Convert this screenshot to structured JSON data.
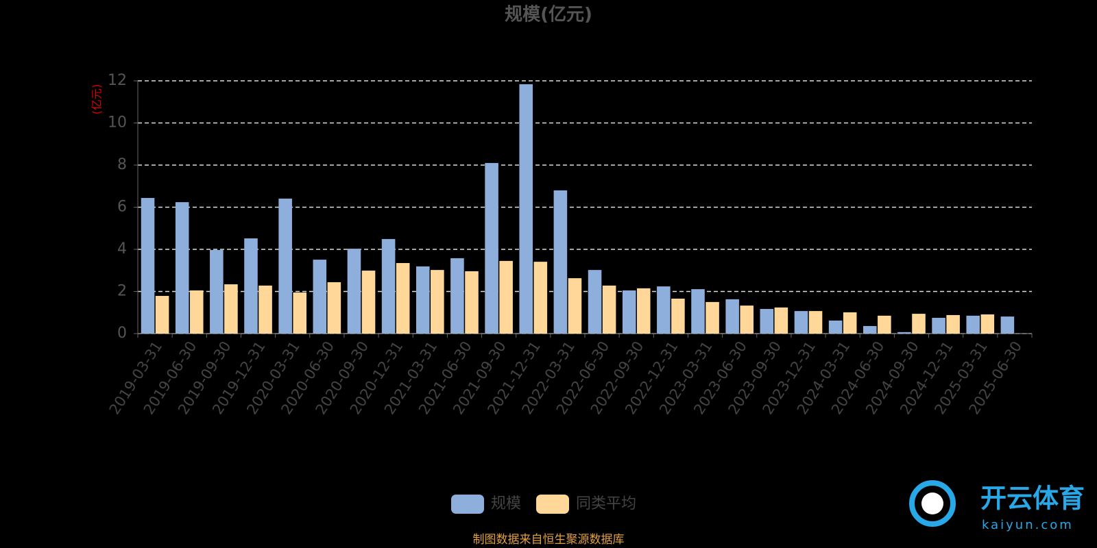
{
  "chart_data": {
    "type": "bar",
    "title": "规模(亿元)",
    "y_label": "(亿元)",
    "categories": [
      "2019-03-31",
      "2019-06-30",
      "2019-09-30",
      "2019-12-31",
      "2020-03-31",
      "2020-06-30",
      "2020-09-30",
      "2020-12-31",
      "2021-03-31",
      "2021-06-30",
      "2021-09-30",
      "2021-12-31",
      "2022-03-31",
      "2022-06-30",
      "2022-09-30",
      "2022-12-31",
      "2023-03-31",
      "2023-06-30",
      "2023-09-30",
      "2023-12-31",
      "2024-03-31",
      "2024-06-30",
      "2024-09-30",
      "2024-12-31",
      "2025-03-31",
      "2025-06-30"
    ],
    "series": [
      {
        "name": "规模",
        "color": "#8eaedc",
        "values": [
          6.44,
          6.24,
          3.97,
          4.52,
          6.41,
          3.51,
          4.03,
          4.49,
          3.19,
          3.58,
          8.1,
          11.84,
          6.8,
          3.02,
          2.05,
          2.24,
          2.11,
          1.63,
          1.17,
          1.07,
          0.62,
          0.36,
          0.07,
          0.75,
          0.85,
          0.81
        ]
      },
      {
        "name": "同类平均",
        "color": "#ffd899",
        "values": [
          1.79,
          2.05,
          2.34,
          2.28,
          1.95,
          2.44,
          2.99,
          3.35,
          3.02,
          2.96,
          3.45,
          3.41,
          2.63,
          2.28,
          2.15,
          1.66,
          1.5,
          1.33,
          1.24,
          1.07,
          1.01,
          0.85,
          0.94,
          0.88,
          0.91,
          null
        ]
      }
    ],
    "ylim": [
      0,
      12
    ],
    "yticks": [
      0,
      2,
      4,
      6,
      8,
      10,
      12
    ],
    "grid": true,
    "footnote": "制图数据来自恒生聚源数据库",
    "watermark": {
      "name": "开云体育",
      "url": "kaiyun.com"
    }
  }
}
